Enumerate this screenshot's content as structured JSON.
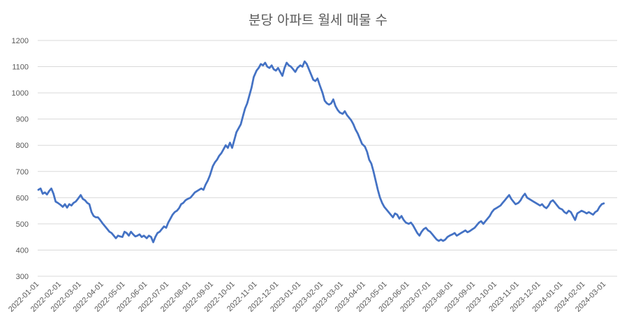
{
  "chart_data": {
    "type": "line",
    "title": "분당 아파트 월세 매물 수",
    "xlabel": "",
    "ylabel": "",
    "ylim": [
      300,
      1200
    ],
    "yticks": [
      300,
      400,
      500,
      600,
      700,
      800,
      900,
      1000,
      1100,
      1200
    ],
    "grid": true,
    "legend": "none",
    "line_color": "#4472C4",
    "x_tick_labels": [
      "2022-01-01",
      "2022-02-01",
      "2022-03-01",
      "2022-04-01",
      "2022-05-01",
      "2022-06-01",
      "2022-07-01",
      "2022-08-01",
      "2022-09-01",
      "2022-10-01",
      "2022-11-01",
      "2022-12-01",
      "2023-01-01",
      "2023-02-01",
      "2023-03-01",
      "2023-04-01",
      "2023-05-01",
      "2023-06-01",
      "2023-07-01",
      "2023-08-01",
      "2023-09-01",
      "2023-10-01",
      "2023-11-01",
      "2023-12-01",
      "2024-01-01",
      "2024-02-01",
      "2024-03-01"
    ],
    "x_end": "2024-03-20",
    "series": [
      {
        "name": "",
        "points": [
          [
            "2022-01-01",
            630
          ],
          [
            "2022-01-04",
            635
          ],
          [
            "2022-01-07",
            615
          ],
          [
            "2022-01-10",
            620
          ],
          [
            "2022-01-13",
            612
          ],
          [
            "2022-01-16",
            625
          ],
          [
            "2022-01-19",
            635
          ],
          [
            "2022-01-22",
            615
          ],
          [
            "2022-01-25",
            585
          ],
          [
            "2022-01-28",
            580
          ],
          [
            "2022-02-01",
            572
          ],
          [
            "2022-02-04",
            565
          ],
          [
            "2022-02-07",
            575
          ],
          [
            "2022-02-10",
            562
          ],
          [
            "2022-02-13",
            575
          ],
          [
            "2022-02-16",
            570
          ],
          [
            "2022-02-19",
            580
          ],
          [
            "2022-02-22",
            585
          ],
          [
            "2022-02-25",
            595
          ],
          [
            "2022-03-01",
            610
          ],
          [
            "2022-03-04",
            595
          ],
          [
            "2022-03-07",
            590
          ],
          [
            "2022-03-10",
            580
          ],
          [
            "2022-03-13",
            575
          ],
          [
            "2022-03-16",
            545
          ],
          [
            "2022-03-19",
            530
          ],
          [
            "2022-03-22",
            525
          ],
          [
            "2022-03-25",
            525
          ],
          [
            "2022-03-28",
            515
          ],
          [
            "2022-04-01",
            500
          ],
          [
            "2022-04-04",
            490
          ],
          [
            "2022-04-07",
            480
          ],
          [
            "2022-04-10",
            470
          ],
          [
            "2022-04-13",
            465
          ],
          [
            "2022-04-16",
            455
          ],
          [
            "2022-04-19",
            445
          ],
          [
            "2022-04-22",
            455
          ],
          [
            "2022-04-25",
            452
          ],
          [
            "2022-04-28",
            450
          ],
          [
            "2022-05-01",
            470
          ],
          [
            "2022-05-04",
            465
          ],
          [
            "2022-05-07",
            455
          ],
          [
            "2022-05-10",
            470
          ],
          [
            "2022-05-13",
            460
          ],
          [
            "2022-05-16",
            452
          ],
          [
            "2022-05-19",
            455
          ],
          [
            "2022-05-22",
            460
          ],
          [
            "2022-05-25",
            450
          ],
          [
            "2022-05-28",
            455
          ],
          [
            "2022-06-01",
            445
          ],
          [
            "2022-06-04",
            455
          ],
          [
            "2022-06-07",
            450
          ],
          [
            "2022-06-10",
            430
          ],
          [
            "2022-06-13",
            450
          ],
          [
            "2022-06-16",
            465
          ],
          [
            "2022-06-19",
            470
          ],
          [
            "2022-06-22",
            480
          ],
          [
            "2022-06-25",
            490
          ],
          [
            "2022-06-28",
            485
          ],
          [
            "2022-07-01",
            505
          ],
          [
            "2022-07-04",
            520
          ],
          [
            "2022-07-07",
            535
          ],
          [
            "2022-07-10",
            545
          ],
          [
            "2022-07-13",
            550
          ],
          [
            "2022-07-16",
            560
          ],
          [
            "2022-07-19",
            575
          ],
          [
            "2022-07-22",
            580
          ],
          [
            "2022-07-25",
            590
          ],
          [
            "2022-07-28",
            595
          ],
          [
            "2022-08-01",
            600
          ],
          [
            "2022-08-04",
            610
          ],
          [
            "2022-08-07",
            620
          ],
          [
            "2022-08-10",
            625
          ],
          [
            "2022-08-13",
            630
          ],
          [
            "2022-08-16",
            635
          ],
          [
            "2022-08-19",
            630
          ],
          [
            "2022-08-22",
            650
          ],
          [
            "2022-08-25",
            665
          ],
          [
            "2022-08-28",
            685
          ],
          [
            "2022-09-01",
            720
          ],
          [
            "2022-09-04",
            735
          ],
          [
            "2022-09-07",
            745
          ],
          [
            "2022-09-10",
            760
          ],
          [
            "2022-09-13",
            770
          ],
          [
            "2022-09-16",
            785
          ],
          [
            "2022-09-19",
            800
          ],
          [
            "2022-09-22",
            790
          ],
          [
            "2022-09-25",
            810
          ],
          [
            "2022-09-28",
            790
          ],
          [
            "2022-10-01",
            820
          ],
          [
            "2022-10-04",
            850
          ],
          [
            "2022-10-07",
            865
          ],
          [
            "2022-10-10",
            880
          ],
          [
            "2022-10-13",
            910
          ],
          [
            "2022-10-16",
            940
          ],
          [
            "2022-10-19",
            960
          ],
          [
            "2022-10-22",
            990
          ],
          [
            "2022-10-25",
            1020
          ],
          [
            "2022-10-28",
            1060
          ],
          [
            "2022-11-01",
            1085
          ],
          [
            "2022-11-04",
            1095
          ],
          [
            "2022-11-07",
            1110
          ],
          [
            "2022-11-10",
            1105
          ],
          [
            "2022-11-13",
            1115
          ],
          [
            "2022-11-16",
            1100
          ],
          [
            "2022-11-19",
            1095
          ],
          [
            "2022-11-22",
            1105
          ],
          [
            "2022-11-25",
            1090
          ],
          [
            "2022-11-28",
            1085
          ],
          [
            "2022-12-01",
            1095
          ],
          [
            "2022-12-04",
            1080
          ],
          [
            "2022-12-07",
            1065
          ],
          [
            "2022-12-10",
            1095
          ],
          [
            "2022-12-13",
            1115
          ],
          [
            "2022-12-16",
            1105
          ],
          [
            "2022-12-19",
            1100
          ],
          [
            "2022-12-22",
            1090
          ],
          [
            "2022-12-25",
            1080
          ],
          [
            "2022-12-28",
            1095
          ],
          [
            "2023-01-01",
            1105
          ],
          [
            "2023-01-04",
            1100
          ],
          [
            "2023-01-07",
            1120
          ],
          [
            "2023-01-10",
            1110
          ],
          [
            "2023-01-13",
            1090
          ],
          [
            "2023-01-16",
            1070
          ],
          [
            "2023-01-19",
            1050
          ],
          [
            "2023-01-22",
            1045
          ],
          [
            "2023-01-25",
            1055
          ],
          [
            "2023-01-28",
            1030
          ],
          [
            "2023-02-01",
            1000
          ],
          [
            "2023-02-04",
            970
          ],
          [
            "2023-02-07",
            960
          ],
          [
            "2023-02-10",
            955
          ],
          [
            "2023-02-13",
            960
          ],
          [
            "2023-02-16",
            975
          ],
          [
            "2023-02-19",
            950
          ],
          [
            "2023-02-22",
            935
          ],
          [
            "2023-02-25",
            925
          ],
          [
            "2023-03-01",
            920
          ],
          [
            "2023-03-04",
            930
          ],
          [
            "2023-03-07",
            915
          ],
          [
            "2023-03-10",
            905
          ],
          [
            "2023-03-13",
            895
          ],
          [
            "2023-03-16",
            880
          ],
          [
            "2023-03-19",
            860
          ],
          [
            "2023-03-22",
            845
          ],
          [
            "2023-03-25",
            825
          ],
          [
            "2023-03-28",
            805
          ],
          [
            "2023-04-01",
            795
          ],
          [
            "2023-04-04",
            775
          ],
          [
            "2023-04-07",
            745
          ],
          [
            "2023-04-10",
            730
          ],
          [
            "2023-04-13",
            700
          ],
          [
            "2023-04-16",
            665
          ],
          [
            "2023-04-19",
            630
          ],
          [
            "2023-04-22",
            600
          ],
          [
            "2023-04-25",
            580
          ],
          [
            "2023-04-28",
            565
          ],
          [
            "2023-05-01",
            555
          ],
          [
            "2023-05-04",
            545
          ],
          [
            "2023-05-07",
            535
          ],
          [
            "2023-05-10",
            525
          ],
          [
            "2023-05-13",
            540
          ],
          [
            "2023-05-16",
            535
          ],
          [
            "2023-05-19",
            520
          ],
          [
            "2023-05-22",
            530
          ],
          [
            "2023-05-25",
            515
          ],
          [
            "2023-05-28",
            505
          ],
          [
            "2023-06-01",
            500
          ],
          [
            "2023-06-04",
            505
          ],
          [
            "2023-06-07",
            495
          ],
          [
            "2023-06-10",
            480
          ],
          [
            "2023-06-13",
            465
          ],
          [
            "2023-06-16",
            455
          ],
          [
            "2023-06-19",
            470
          ],
          [
            "2023-06-22",
            480
          ],
          [
            "2023-06-25",
            485
          ],
          [
            "2023-06-28",
            475
          ],
          [
            "2023-07-01",
            470
          ],
          [
            "2023-07-04",
            460
          ],
          [
            "2023-07-07",
            450
          ],
          [
            "2023-07-10",
            440
          ],
          [
            "2023-07-13",
            435
          ],
          [
            "2023-07-16",
            440
          ],
          [
            "2023-07-19",
            435
          ],
          [
            "2023-07-22",
            440
          ],
          [
            "2023-07-25",
            450
          ],
          [
            "2023-07-28",
            455
          ],
          [
            "2023-08-01",
            460
          ],
          [
            "2023-08-04",
            465
          ],
          [
            "2023-08-07",
            455
          ],
          [
            "2023-08-10",
            460
          ],
          [
            "2023-08-13",
            465
          ],
          [
            "2023-08-16",
            470
          ],
          [
            "2023-08-19",
            475
          ],
          [
            "2023-08-22",
            468
          ],
          [
            "2023-08-25",
            472
          ],
          [
            "2023-08-28",
            478
          ],
          [
            "2023-09-01",
            485
          ],
          [
            "2023-09-04",
            495
          ],
          [
            "2023-09-07",
            505
          ],
          [
            "2023-09-10",
            510
          ],
          [
            "2023-09-13",
            500
          ],
          [
            "2023-09-16",
            510
          ],
          [
            "2023-09-19",
            520
          ],
          [
            "2023-09-22",
            530
          ],
          [
            "2023-09-25",
            545
          ],
          [
            "2023-09-28",
            555
          ],
          [
            "2023-10-01",
            560
          ],
          [
            "2023-10-04",
            565
          ],
          [
            "2023-10-07",
            570
          ],
          [
            "2023-10-10",
            580
          ],
          [
            "2023-10-13",
            590
          ],
          [
            "2023-10-16",
            600
          ],
          [
            "2023-10-19",
            610
          ],
          [
            "2023-10-22",
            595
          ],
          [
            "2023-10-25",
            585
          ],
          [
            "2023-10-28",
            575
          ],
          [
            "2023-11-01",
            580
          ],
          [
            "2023-11-04",
            590
          ],
          [
            "2023-11-07",
            605
          ],
          [
            "2023-11-10",
            615
          ],
          [
            "2023-11-13",
            600
          ],
          [
            "2023-11-16",
            595
          ],
          [
            "2023-11-19",
            590
          ],
          [
            "2023-11-22",
            585
          ],
          [
            "2023-11-25",
            580
          ],
          [
            "2023-11-28",
            575
          ],
          [
            "2023-12-01",
            570
          ],
          [
            "2023-12-04",
            575
          ],
          [
            "2023-12-07",
            565
          ],
          [
            "2023-12-10",
            560
          ],
          [
            "2023-12-13",
            570
          ],
          [
            "2023-12-16",
            585
          ],
          [
            "2023-12-19",
            590
          ],
          [
            "2023-12-22",
            580
          ],
          [
            "2023-12-25",
            570
          ],
          [
            "2023-12-28",
            560
          ],
          [
            "2024-01-01",
            555
          ],
          [
            "2024-01-04",
            545
          ],
          [
            "2024-01-07",
            540
          ],
          [
            "2024-01-10",
            550
          ],
          [
            "2024-01-13",
            545
          ],
          [
            "2024-01-16",
            530
          ],
          [
            "2024-01-19",
            515
          ],
          [
            "2024-01-22",
            540
          ],
          [
            "2024-01-25",
            545
          ],
          [
            "2024-01-28",
            550
          ],
          [
            "2024-02-01",
            545
          ],
          [
            "2024-02-04",
            540
          ],
          [
            "2024-02-07",
            545
          ],
          [
            "2024-02-10",
            540
          ],
          [
            "2024-02-13",
            535
          ],
          [
            "2024-02-16",
            545
          ],
          [
            "2024-02-19",
            550
          ],
          [
            "2024-02-22",
            565
          ],
          [
            "2024-02-25",
            575
          ],
          [
            "2024-02-28",
            578
          ]
        ]
      }
    ]
  }
}
